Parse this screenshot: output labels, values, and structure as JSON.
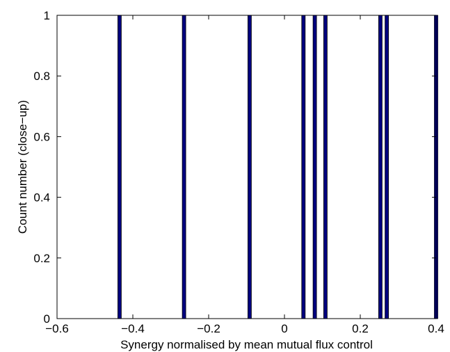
{
  "chart_data": {
    "type": "bar",
    "title": "",
    "xlabel": "Synergy normalised by mean mutual flux control",
    "ylabel": "Count number (close−up)",
    "xlim": [
      -0.6,
      0.4
    ],
    "ylim": [
      0,
      1
    ],
    "xticks": [
      -0.6,
      -0.4,
      -0.2,
      0,
      0.2,
      0.4
    ],
    "xtick_labels": [
      "−0.6",
      "−0.4",
      "−0.2",
      "0",
      "0.2",
      "0.4"
    ],
    "yticks": [
      0,
      0.2,
      0.4,
      0.6,
      0.8,
      1
    ],
    "ytick_labels": [
      "0",
      "0.2",
      "0.4",
      "0.6",
      "0.8",
      "1"
    ],
    "grid": false,
    "series": [
      {
        "x": [
          -0.435,
          -0.265,
          -0.092,
          0.05,
          0.08,
          0.108,
          0.253,
          0.27,
          0.4
        ],
        "values": [
          1,
          1,
          1,
          1,
          1,
          1,
          1,
          1,
          1
        ],
        "fill": "#00007f",
        "edge": "#000000"
      }
    ]
  }
}
